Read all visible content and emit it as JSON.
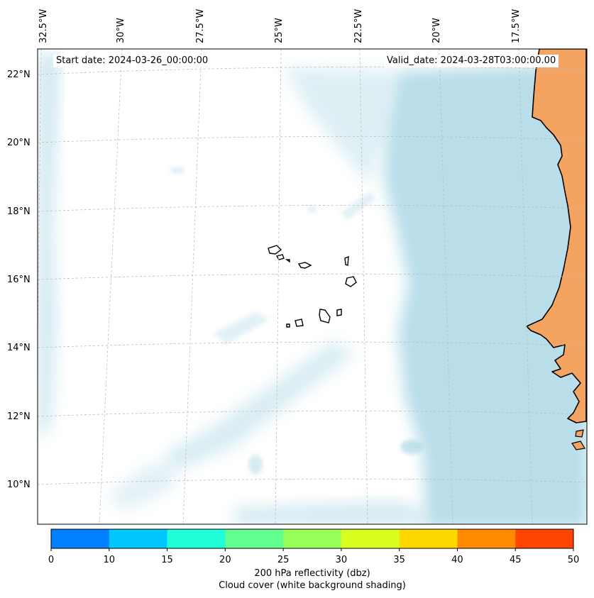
{
  "map": {
    "title_left_label": "Start date:",
    "start_date": "2024-03-26_00:00:00",
    "title_right_label": "Valid_date:",
    "valid_date": "2024-03-28T03:00:00.00",
    "longitude_labels": [
      "32.5°W",
      "30°W",
      "27.5°W",
      "25°W",
      "22.5°W",
      "20°W",
      "17.5°W"
    ],
    "latitude_labels": [
      "22°N",
      "20°N",
      "18°N",
      "16°N",
      "14°N",
      "12°N",
      "10°N"
    ],
    "colors": {
      "land": "#f4a460",
      "cloud": "#add8e6",
      "coastline": "#000000",
      "gridline": "#bbbbbb"
    }
  },
  "colorbar": {
    "ticks": [
      "0",
      "10",
      "15",
      "20",
      "25",
      "30",
      "35",
      "40",
      "45",
      "50"
    ],
    "colors": [
      "#0080ff",
      "#00c8ff",
      "#20ffd8",
      "#60ff90",
      "#98ff58",
      "#d8ff20",
      "#ffd800",
      "#ff8c00",
      "#ff4500"
    ],
    "label": "200 hPa reflectivity (dbz)",
    "sublabel": "Cloud cover (white background shading)"
  }
}
